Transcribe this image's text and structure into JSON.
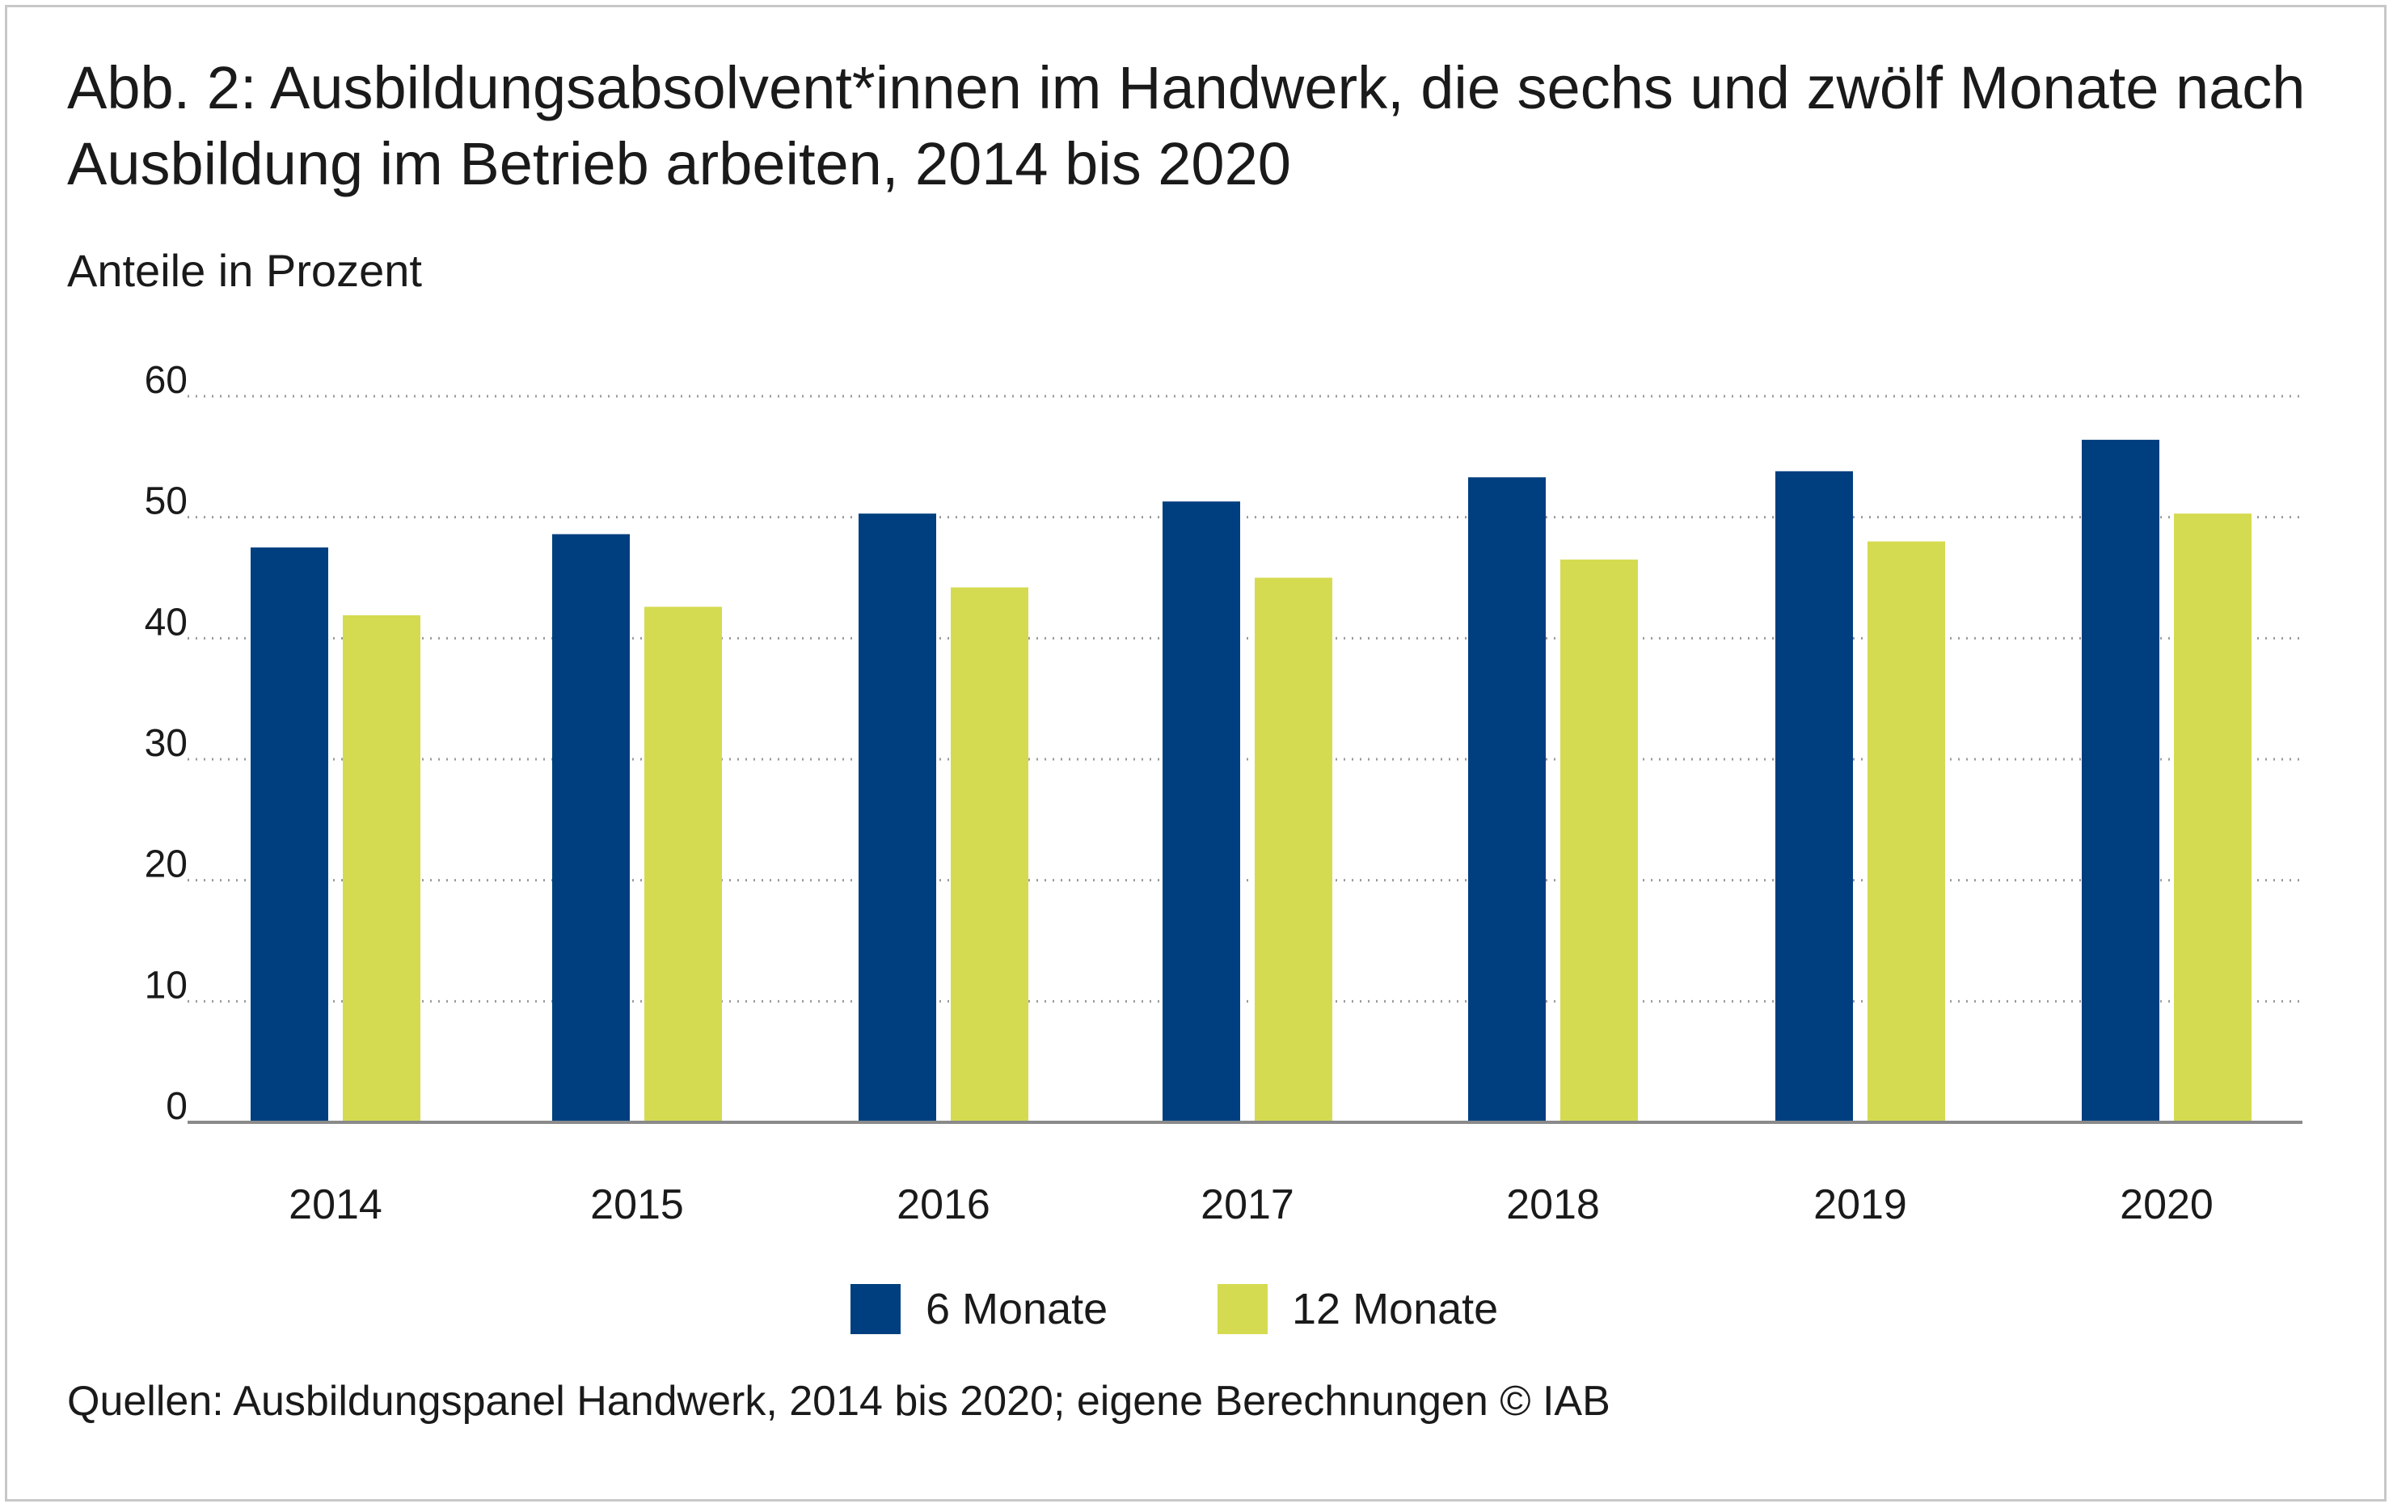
{
  "title": "Abb. 2: Ausbildungsabsolvent*innen im Handwerk, die sechs und zwölf Monate nach Ausbildung im Betrieb arbeiten, 2014 bis 2020",
  "subtitle": "Anteile in Prozent",
  "source": "Quellen: Ausbildungspanel Handwerk, 2014 bis 2020; eigene Berechnungen © IAB",
  "colors": {
    "series_6": "#003f7f",
    "series_12": "#d5db50",
    "grid": "#9a9a9a",
    "axis": "#8a8a8a",
    "frame": "#c8c8c8"
  },
  "chart_data": {
    "type": "bar",
    "title": "Abb. 2: Ausbildungsabsolvent*innen im Handwerk, die sechs und zwölf Monate nach Ausbildung im Betrieb arbeiten, 2014 bis 2020",
    "ylabel": "Anteile in Prozent",
    "xlabel": "",
    "categories": [
      "2014",
      "2015",
      "2016",
      "2017",
      "2018",
      "2019",
      "2020"
    ],
    "series": [
      {
        "name": "6 Monate",
        "color": "#003f7f",
        "values": [
          47.5,
          48.6,
          50.3,
          51.3,
          53.3,
          53.8,
          56.4
        ]
      },
      {
        "name": "12 Monate",
        "color": "#d5db50",
        "values": [
          41.9,
          42.6,
          44.2,
          45.0,
          46.5,
          48.0,
          50.3
        ]
      }
    ],
    "ylim": [
      0,
      60
    ],
    "yticks": [
      0,
      10,
      20,
      30,
      40,
      50,
      60
    ],
    "grid": true,
    "legend_position": "bottom-center"
  }
}
